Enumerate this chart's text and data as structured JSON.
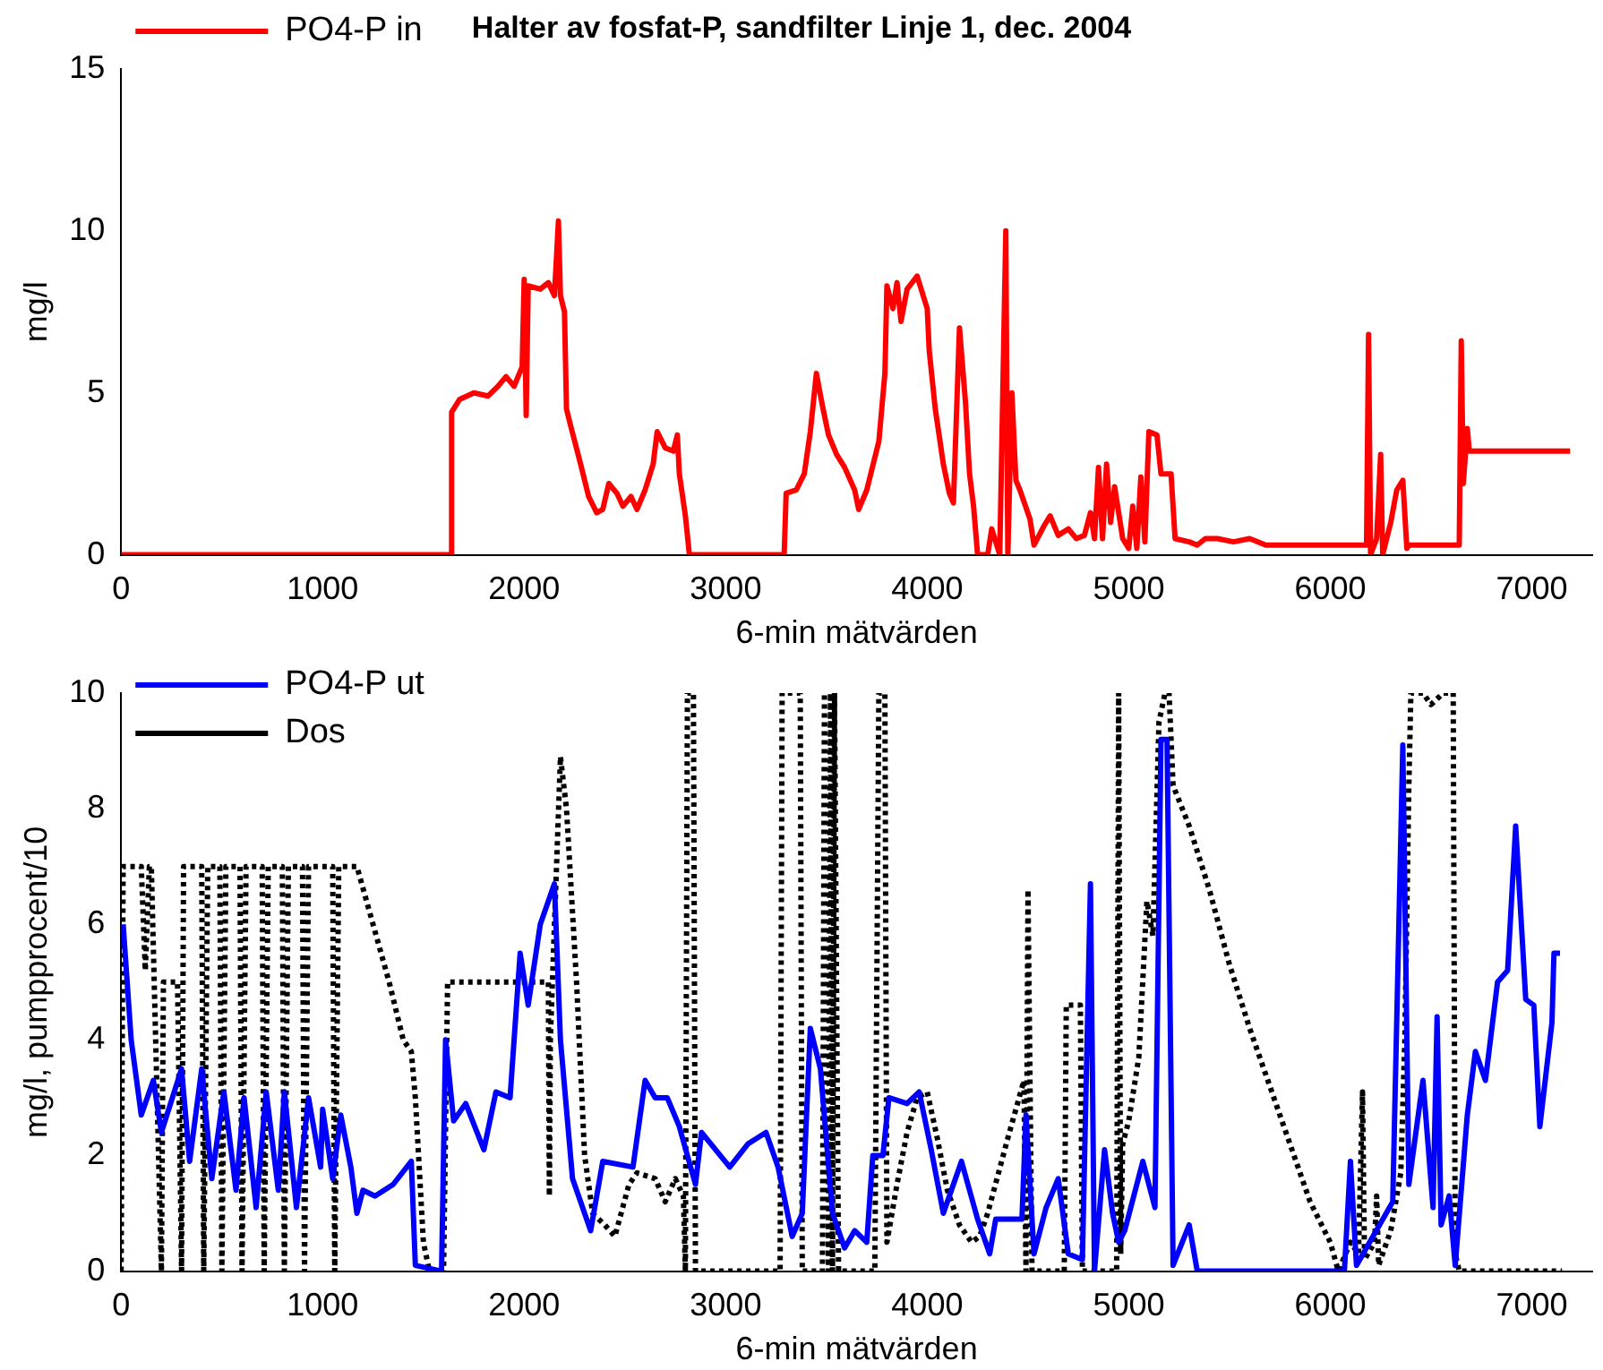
{
  "chart_data": [
    {
      "type": "line",
      "title": "Halter av fosfat-P, sandfilter Linje 1, dec. 2004",
      "xlabel": "6-min mätvärden",
      "ylabel": "mg/l",
      "xlim": [
        0,
        7300
      ],
      "xticks": [
        0,
        1000,
        2000,
        3000,
        4000,
        5000,
        6000,
        7000
      ],
      "ylim": [
        0,
        15
      ],
      "yticks": [
        0,
        5,
        10,
        15
      ],
      "grid": false,
      "legend": "top left",
      "marker": "none",
      "series": [
        {
          "name": "PO4-P in",
          "color": "#ff0000",
          "line_style": "solid",
          "x": [
            0,
            1640,
            1640,
            1680,
            1750,
            1820,
            1870,
            1910,
            1950,
            1990,
            2000,
            2010,
            2020,
            2080,
            2120,
            2150,
            2170,
            2180,
            2200,
            2210,
            2230,
            2280,
            2320,
            2360,
            2390,
            2420,
            2460,
            2490,
            2530,
            2560,
            2600,
            2640,
            2660,
            2700,
            2740,
            2760,
            2770,
            2800,
            2820,
            3290,
            3300,
            3350,
            3390,
            3420,
            3450,
            3480,
            3510,
            3550,
            3590,
            3640,
            3660,
            3700,
            3760,
            3790,
            3800,
            3830,
            3850,
            3870,
            3900,
            3950,
            3970,
            4000,
            4010,
            4040,
            4080,
            4110,
            4130,
            4160,
            4190,
            4210,
            4230,
            4250,
            4300,
            4320,
            4360,
            4390,
            4400,
            4420,
            4440,
            4460,
            4510,
            4530,
            4580,
            4610,
            4650,
            4700,
            4740,
            4780,
            4810,
            4830,
            4850,
            4870,
            4890,
            4910,
            4930,
            4970,
            5000,
            5020,
            5040,
            5060,
            5080,
            5100,
            5140,
            5160,
            5210,
            5230,
            5300,
            5340,
            5380,
            5440,
            5520,
            5600,
            5680,
            5720,
            6180,
            6190,
            6200,
            6230,
            6250,
            6260,
            6300,
            6330,
            6360,
            6380,
            6390,
            6640,
            6650,
            6660,
            6680,
            6690,
            7190
          ],
          "values": [
            0,
            0,
            4.4,
            4.8,
            5.0,
            4.9,
            5.2,
            5.5,
            5.2,
            5.8,
            8.5,
            4.3,
            8.3,
            8.2,
            8.4,
            8.0,
            10.3,
            8.0,
            7.5,
            4.5,
            4.0,
            2.8,
            1.8,
            1.3,
            1.4,
            2.2,
            1.9,
            1.5,
            1.8,
            1.4,
            2.0,
            2.8,
            3.8,
            3.3,
            3.2,
            3.7,
            2.5,
            1.2,
            0,
            0,
            1.9,
            2.0,
            2.5,
            3.8,
            5.6,
            4.6,
            3.7,
            3.1,
            2.7,
            2.0,
            1.4,
            2.0,
            3.5,
            5.6,
            8.3,
            7.6,
            8.4,
            7.2,
            8.2,
            8.6,
            8.2,
            7.6,
            6.3,
            4.5,
            2.8,
            1.9,
            1.6,
            7.0,
            4.7,
            2.5,
            1.5,
            0,
            0,
            0.8,
            0,
            10.0,
            0,
            5.0,
            2.3,
            2.0,
            1.1,
            0.3,
            0.9,
            1.2,
            0.6,
            0.8,
            0.5,
            0.6,
            1.3,
            0.5,
            2.7,
            0.5,
            2.8,
            1.0,
            2.1,
            0.5,
            0.2,
            1.5,
            0.2,
            2.4,
            0.4,
            3.8,
            3.7,
            2.5,
            2.5,
            0.5,
            0.4,
            0.3,
            0.5,
            0.5,
            0.4,
            0.5,
            0.3,
            0.3,
            0.3,
            6.8,
            0,
            0.5,
            3.1,
            0,
            1.0,
            2.0,
            2.3,
            0.2,
            0.3,
            0.3,
            6.6,
            2.2,
            3.9,
            3.2,
            3.2
          ]
        }
      ]
    },
    {
      "type": "line",
      "xlabel": "6-min mätvärden",
      "ylabel": "mg/l, pumpprocent/10",
      "xlim": [
        0,
        7300
      ],
      "xticks": [
        0,
        1000,
        2000,
        3000,
        4000,
        5000,
        6000,
        7000
      ],
      "ylim": [
        0,
        10
      ],
      "yticks": [
        0,
        2,
        4,
        6,
        8,
        10
      ],
      "grid": false,
      "legend": "top left",
      "marker": "none",
      "series": [
        {
          "name": "PO4-P ut",
          "color": "#0000ff",
          "line_style": "solid",
          "x": [
            10,
            50,
            100,
            160,
            200,
            300,
            340,
            400,
            450,
            510,
            570,
            610,
            670,
            720,
            780,
            810,
            870,
            930,
            990,
            1000,
            1050,
            1090,
            1140,
            1170,
            1200,
            1260,
            1350,
            1440,
            1460,
            1590,
            1610,
            1650,
            1710,
            1800,
            1860,
            1930,
            1980,
            2020,
            2080,
            2150,
            2180,
            2240,
            2330,
            2390,
            2540,
            2600,
            2650,
            2710,
            2770,
            2850,
            2880,
            3020,
            3110,
            3200,
            3260,
            3330,
            3380,
            3420,
            3470,
            3530,
            3590,
            3640,
            3700,
            3730,
            3780,
            3810,
            3900,
            3960,
            4020,
            4080,
            4170,
            4250,
            4310,
            4340,
            4470,
            4490,
            4530,
            4590,
            4650,
            4700,
            4770,
            4810,
            4830,
            4880,
            4920,
            4950,
            4980,
            5070,
            5130,
            5160,
            5190,
            5220,
            5300,
            5340,
            6070,
            6100,
            6130,
            6310,
            6360,
            6390,
            6460,
            6510,
            6530,
            6550,
            6590,
            6620,
            6680,
            6720,
            6770,
            6830,
            6880,
            6920,
            6970,
            7010,
            7040,
            7100,
            7110,
            7140
          ],
          "values": [
            6.0,
            4.0,
            2.7,
            3.3,
            2.4,
            3.5,
            1.9,
            3.5,
            1.6,
            3.1,
            1.4,
            3.0,
            1.1,
            3.1,
            1.4,
            3.1,
            1.1,
            3.0,
            1.8,
            2.8,
            1.6,
            2.7,
            1.8,
            1.0,
            1.4,
            1.3,
            1.5,
            1.9,
            0.1,
            0,
            4.0,
            2.6,
            2.9,
            2.1,
            3.1,
            3.0,
            5.5,
            4.6,
            6.0,
            6.7,
            4.0,
            1.6,
            0.7,
            1.9,
            1.8,
            3.3,
            3.0,
            3.0,
            2.5,
            1.5,
            2.4,
            1.8,
            2.2,
            2.4,
            1.8,
            0.6,
            1.0,
            4.2,
            3.5,
            1.0,
            0.4,
            0.7,
            0.5,
            2.0,
            2.0,
            3.0,
            2.9,
            3.1,
            2.1,
            1.0,
            1.9,
            0.9,
            0.3,
            0.9,
            0.9,
            2.7,
            0.3,
            1.1,
            1.6,
            0.3,
            0.2,
            6.7,
            0,
            2.1,
            1.0,
            0.5,
            0.7,
            1.9,
            1.1,
            9.2,
            9.2,
            0.1,
            0.8,
            0,
            0,
            1.9,
            0.1,
            1.2,
            9.1,
            1.5,
            3.3,
            1.1,
            4.4,
            0.8,
            1.3,
            0.1,
            2.7,
            3.8,
            3.3,
            5.0,
            5.2,
            7.7,
            4.7,
            4.6,
            2.5,
            4.3,
            5.5,
            5.5
          ]
        },
        {
          "name": "Dos",
          "color": "#000000",
          "line_style": "dotted",
          "x": [
            0,
            10,
            100,
            120,
            140,
            150,
            200,
            210,
            280,
            300,
            310,
            400,
            410,
            430,
            490,
            500,
            520,
            590,
            600,
            620,
            700,
            710,
            730,
            800,
            810,
            830,
            900,
            910,
            930,
            1050,
            1060,
            1080,
            1170,
            1250,
            1330,
            1400,
            1440,
            1460,
            1500,
            1530,
            1600,
            1620,
            2120,
            2125,
            2130,
            2180,
            2210,
            2260,
            2300,
            2340,
            2400,
            2450,
            2520,
            2560,
            2650,
            2700,
            2750,
            2790,
            2800,
            2810,
            2840,
            2850,
            3270,
            3280,
            3370,
            3380,
            3480,
            3490,
            3510,
            3520,
            3530,
            3540,
            3560,
            3740,
            3760,
            3790,
            3800,
            3850,
            3900,
            3950,
            4000,
            4050,
            4100,
            4160,
            4220,
            4260,
            4300,
            4400,
            4480,
            4490,
            4500,
            4520,
            4680,
            4690,
            4760,
            4770,
            4940,
            4950,
            4960,
            4970,
            5000,
            5050,
            5090,
            5120,
            5150,
            5180,
            5200,
            5220,
            5300,
            5400,
            5500,
            5600,
            5700,
            5800,
            5900,
            6000,
            6040,
            6100,
            6140,
            6160,
            6170,
            6220,
            6230,
            6240,
            6300,
            6350,
            6370,
            6390,
            6400,
            6460,
            6500,
            6560,
            6610,
            6620,
            6640,
            7150
          ],
          "values": [
            0,
            7.0,
            7.0,
            5.2,
            7.0,
            7.0,
            0,
            5.0,
            5.0,
            0,
            7,
            7,
            0,
            7,
            7,
            0,
            7,
            7,
            0,
            7,
            7,
            0,
            7,
            7,
            0,
            7,
            7,
            0,
            7,
            7,
            0,
            7,
            7,
            6.0,
            5.0,
            4.0,
            3.8,
            3.0,
            0.5,
            0,
            0,
            5.0,
            5.0,
            1.3,
            4.0,
            8.9,
            8.0,
            5.0,
            2.0,
            1.0,
            0.8,
            0.6,
            1.5,
            1.7,
            1.6,
            1.2,
            1.6,
            1.3,
            0,
            10,
            10,
            0,
            0,
            10,
            10,
            0,
            0,
            10,
            0,
            10,
            0,
            10,
            0,
            0,
            10,
            10,
            0.5,
            1.5,
            2.4,
            3.0,
            3.1,
            2.3,
            1.4,
            0.8,
            0.5,
            0.6,
            1.0,
            2.3,
            3.3,
            0,
            6.6,
            0,
            0,
            4.6,
            4.6,
            0,
            0,
            10,
            0.3,
            2.2,
            2.6,
            3.7,
            6.4,
            5.8,
            9.5,
            10,
            10,
            8.4,
            7.7,
            6.6,
            5.3,
            4.2,
            3.2,
            2.2,
            1.2,
            0.5,
            0,
            0.5,
            0.3,
            3.1,
            0.2,
            0.5,
            1.3,
            0.1,
            0.7,
            1.7,
            4.0,
            8.4,
            10,
            10,
            9.8,
            10,
            10,
            0.3,
            0,
            0
          ]
        }
      ]
    }
  ]
}
